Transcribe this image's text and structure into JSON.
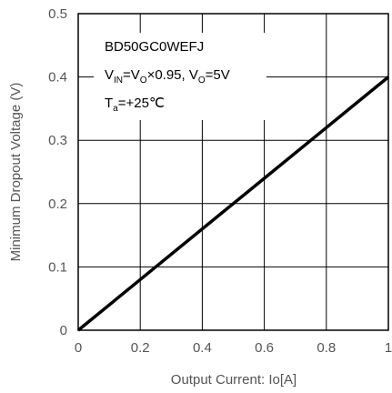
{
  "chart_data": {
    "type": "line",
    "title": "",
    "xlabel": "Output Current: Io[A]",
    "ylabel": "Minimum Dropout Voltage (V)",
    "xlim": [
      0,
      1
    ],
    "ylim": [
      0,
      0.5
    ],
    "grid": true,
    "x_ticks": [
      "0",
      "0.2",
      "0.4",
      "0.6",
      "0.8",
      "1"
    ],
    "y_ticks": [
      "0",
      "0.1",
      "0.2",
      "0.3",
      "0.4",
      "0.5"
    ],
    "series": [
      {
        "x": [
          0,
          0.2,
          0.4,
          0.6,
          0.8,
          1.0
        ],
        "y": [
          0,
          0.08,
          0.16,
          0.24,
          0.32,
          0.4
        ]
      }
    ],
    "annotations": {
      "part_number": "BD50GC0WEFJ",
      "cond_v": "V",
      "cond_in": "IN",
      "cond_eq": "=V",
      "cond_o1": "O",
      "cond_factor": "×0.95, V",
      "cond_o2": "O",
      "cond_val": "=5V",
      "temp_t": "T",
      "temp_a": "a",
      "temp_val": "=+25℃"
    },
    "colors": {
      "line": "#000000",
      "grid": "#000000",
      "axis_text": "#555555"
    }
  }
}
